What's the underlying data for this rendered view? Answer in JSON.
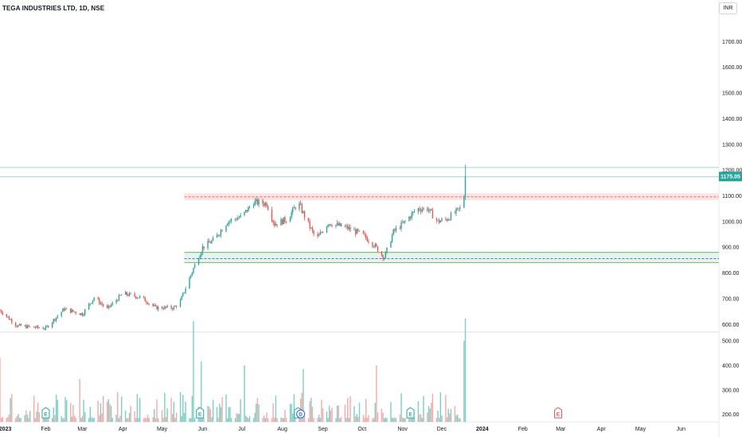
{
  "header": {
    "title": "TEGA INDUSTRIES LTD, 1D, NSE",
    "currency": "INR"
  },
  "chart_data": {
    "type": "candlestick",
    "y_range": [
      570,
      1800
    ],
    "y_ticks": [
      600,
      700,
      800,
      900,
      1000,
      1100,
      1200,
      1300,
      1400,
      1500,
      1600,
      1700
    ],
    "y_tick_labels": [
      "600.00",
      "700.00",
      "800.00",
      "900.00",
      "1000.00",
      "1100.00",
      "1200.00",
      "1300.00",
      "1400.00",
      "1500.00",
      "1600.00",
      "1700.00"
    ],
    "volume_labels": [
      {
        "label": "200.00",
        "value": 200
      },
      {
        "label": "300.00",
        "value": 300
      },
      {
        "label": "400.00",
        "value": 400
      },
      {
        "label": "500.00",
        "value": 500
      }
    ],
    "volume_range": [
      170,
      535
    ],
    "x_range": [
      "2022-12-28",
      "2024-06-30"
    ],
    "x_ticks": [
      {
        "label": "2023",
        "date": "2023-01-01"
      },
      {
        "label": "Feb",
        "date": "2023-02-01"
      },
      {
        "label": "Mar",
        "date": "2023-03-01"
      },
      {
        "label": "Apr",
        "date": "2023-04-01"
      },
      {
        "label": "May",
        "date": "2023-05-01"
      },
      {
        "label": "Jun",
        "date": "2023-06-01"
      },
      {
        "label": "Jul",
        "date": "2023-07-01"
      },
      {
        "label": "Aug",
        "date": "2023-08-01"
      },
      {
        "label": "Sep",
        "date": "2023-09-01"
      },
      {
        "label": "Oct",
        "date": "2023-10-01"
      },
      {
        "label": "Nov",
        "date": "2023-11-01"
      },
      {
        "label": "Dec",
        "date": "2023-12-01"
      },
      {
        "label": "2024",
        "date": "2024-01-01"
      },
      {
        "label": "Feb",
        "date": "2024-02-01"
      },
      {
        "label": "Mar",
        "date": "2024-03-01"
      },
      {
        "label": "Apr",
        "date": "2024-04-01"
      },
      {
        "label": "May",
        "date": "2024-05-01"
      },
      {
        "label": "Jun",
        "date": "2024-06-01"
      }
    ],
    "last_price": 1175.05,
    "last_price_label": "1175.05",
    "colors": {
      "up": "#26a69a",
      "down": "#ef5350",
      "up_volume": "#7dcfc3",
      "down_volume": "#f7a9a7",
      "resistance_fill": "#fde4e4",
      "support_fill": "#e6f4ea",
      "support_line": "#4caf50",
      "mid_line": "#2962ff",
      "resistance_mid": "#ef5350"
    },
    "zones": [
      {
        "name": "resistance",
        "low": 1083,
        "high": 1110,
        "mid": 1096,
        "from": "2023-05-18"
      },
      {
        "name": "support",
        "low": 840,
        "high": 880,
        "mid": 856,
        "from": "2023-05-18"
      }
    ],
    "horizontal_lines": [
      1175.05,
      1210
    ],
    "earnings_markers": [
      "2023-02-01",
      "2023-05-30",
      "2023-08-13",
      "2023-11-07"
    ],
    "dividend_markers": [
      "2023-08-15"
    ],
    "upcoming_earnings_markers": [
      "2024-02-28"
    ],
    "anchors": [
      [
        "2022-12-28",
        655
      ],
      [
        "2023-01-10",
        595
      ],
      [
        "2023-01-20",
        590
      ],
      [
        "2023-02-01",
        585
      ],
      [
        "2023-02-15",
        660
      ],
      [
        "2023-03-01",
        640
      ],
      [
        "2023-03-10",
        705
      ],
      [
        "2023-03-20",
        660
      ],
      [
        "2023-04-01",
        720
      ],
      [
        "2023-04-15",
        705
      ],
      [
        "2023-04-26",
        665
      ],
      [
        "2023-05-10",
        665
      ],
      [
        "2023-05-15",
        690
      ],
      [
        "2023-05-22",
        780
      ],
      [
        "2023-05-26",
        830
      ],
      [
        "2023-06-01",
        900
      ],
      [
        "2023-06-10",
        930
      ],
      [
        "2023-06-20",
        1000
      ],
      [
        "2023-07-01",
        1020
      ],
      [
        "2023-07-10",
        1075
      ],
      [
        "2023-07-20",
        1070
      ],
      [
        "2023-07-26",
        990
      ],
      [
        "2023-08-05",
        1010
      ],
      [
        "2023-08-13",
        1075
      ],
      [
        "2023-08-20",
        1000
      ],
      [
        "2023-08-27",
        930
      ],
      [
        "2023-09-05",
        995
      ],
      [
        "2023-09-20",
        975
      ],
      [
        "2023-10-01",
        950
      ],
      [
        "2023-10-10",
        910
      ],
      [
        "2023-10-18",
        860
      ],
      [
        "2023-10-25",
        960
      ],
      [
        "2023-11-03",
        1000
      ],
      [
        "2023-11-12",
        1050
      ],
      [
        "2023-11-20",
        1050
      ],
      [
        "2023-11-28",
        1000
      ],
      [
        "2023-12-05",
        1010
      ],
      [
        "2023-12-15",
        1050
      ],
      [
        "2023-12-18",
        1100
      ],
      [
        "2023-12-19",
        1175
      ]
    ],
    "volume_peaks": [
      [
        "2023-05-25",
        580
      ],
      [
        "2023-05-31",
        415
      ],
      [
        "2023-08-17",
        385
      ],
      [
        "2023-12-18",
        500
      ],
      [
        "2023-12-19",
        590
      ],
      [
        "2022-12-28",
        430
      ],
      [
        "2023-02-27",
        345
      ],
      [
        "2023-03-18",
        350
      ],
      [
        "2023-07-03",
        400
      ],
      [
        "2023-10-12",
        400
      ],
      [
        "2023-05-20",
        380
      ]
    ]
  }
}
